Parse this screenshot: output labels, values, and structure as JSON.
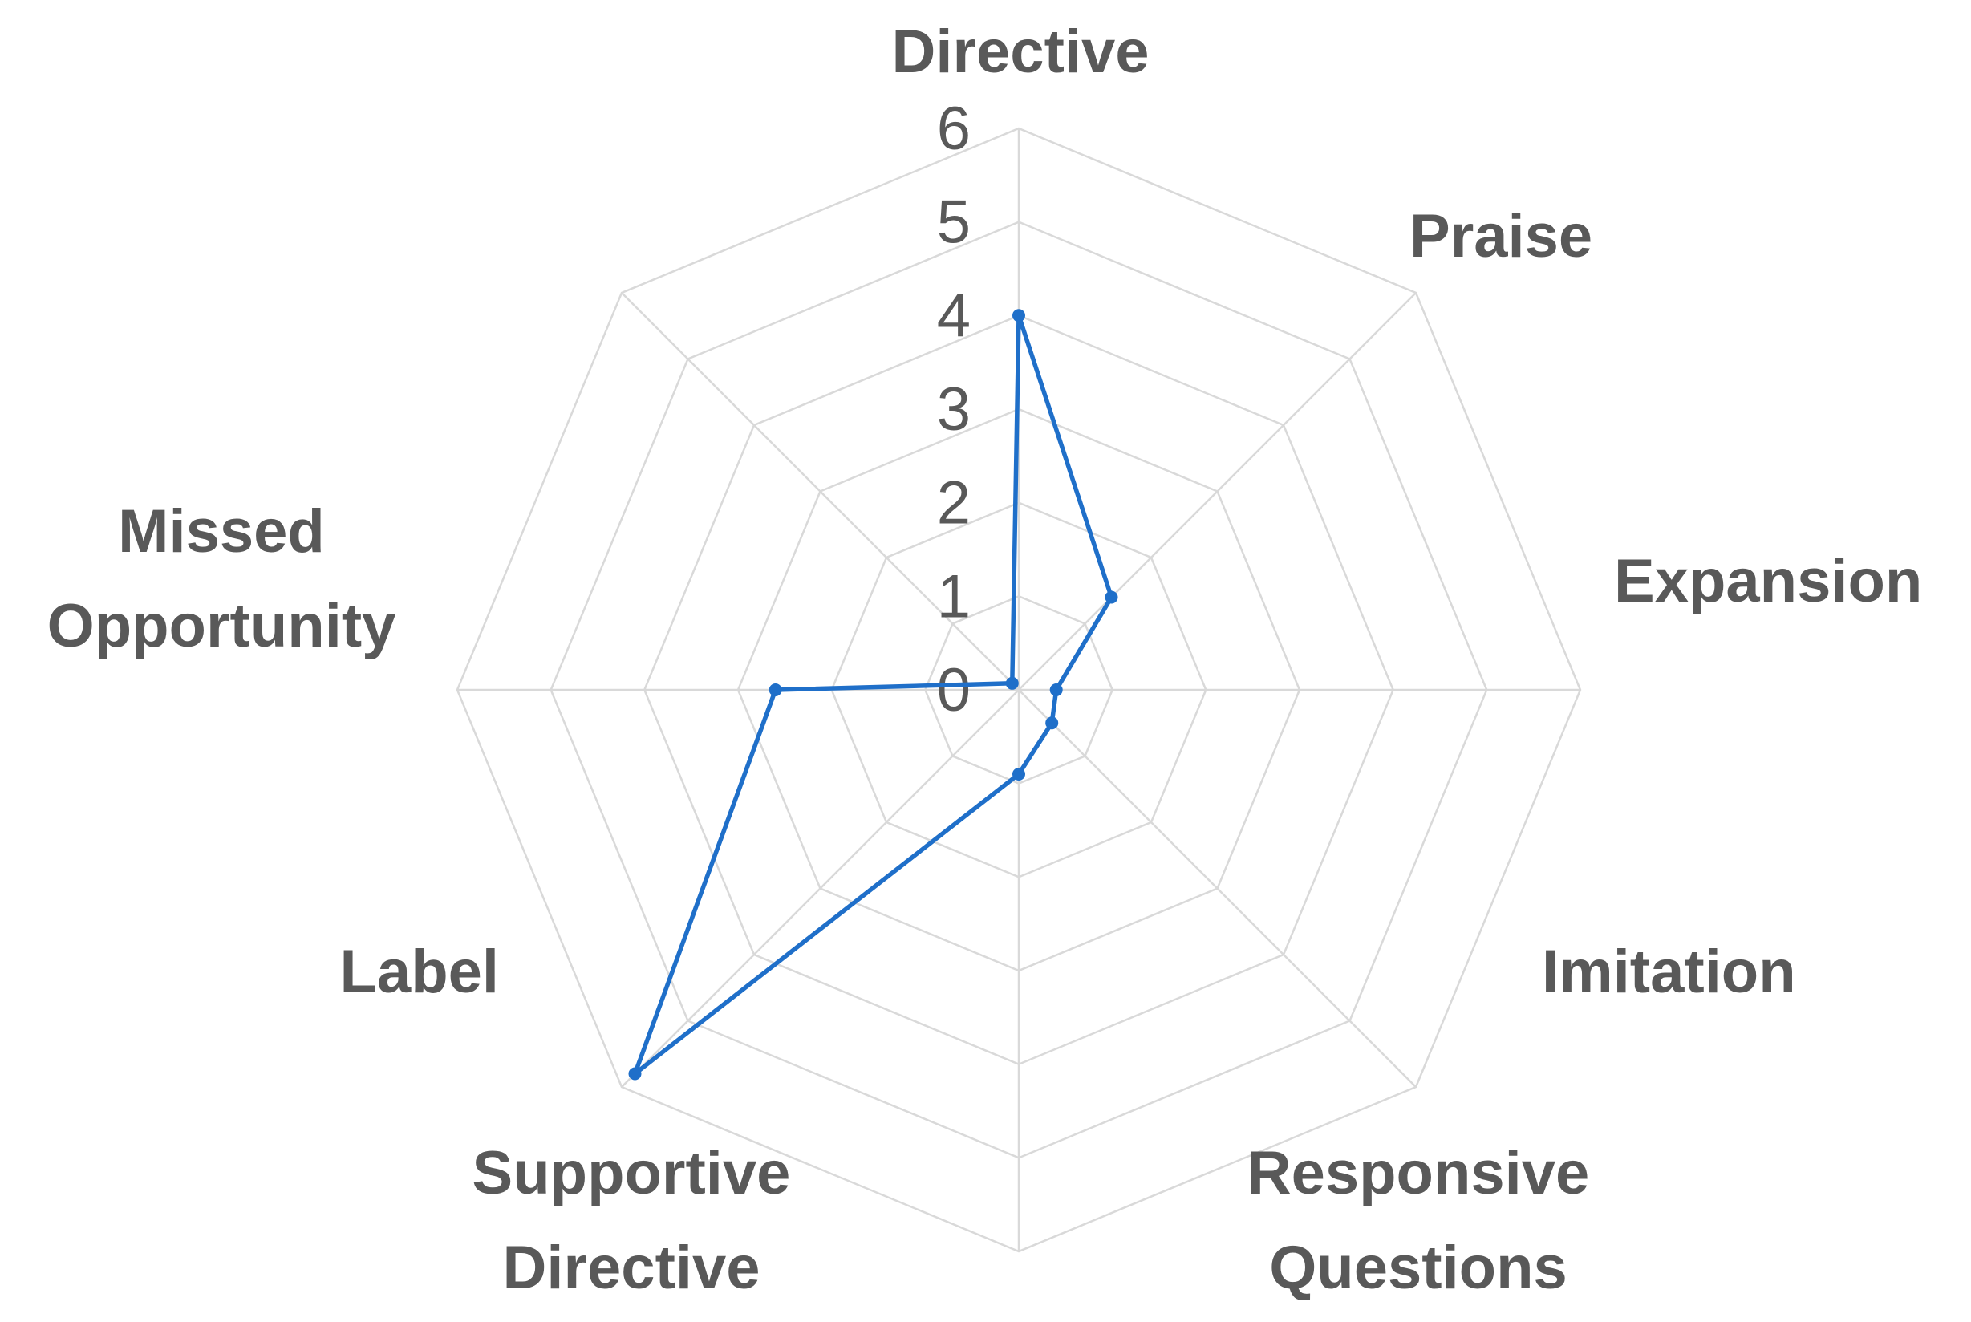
{
  "chart_data": {
    "type": "radar",
    "title": "",
    "categories": [
      "Directive",
      "Praise",
      "Expansion",
      "Imitation",
      "Responsive Questions",
      "Supportive Directive",
      "Label",
      "Missed Opportunity"
    ],
    "category_label_lines": [
      [
        "Directive"
      ],
      [
        "Praise"
      ],
      [
        "Expansion"
      ],
      [
        "Imitation"
      ],
      [
        "Responsive",
        "Questions"
      ],
      [
        "Supportive",
        "Directive"
      ],
      [
        "Label"
      ],
      [
        "Missed",
        "Opportunity"
      ]
    ],
    "radial_ticks": [
      "0",
      "1",
      "2",
      "3",
      "4",
      "5",
      "6"
    ],
    "rlim": [
      0,
      6
    ],
    "grid": true,
    "legend": "none",
    "series": [
      {
        "values": [
          4,
          1.4,
          0.4,
          0.5,
          0.9,
          5.8,
          2.6,
          0.1
        ],
        "color": "#1f6fc9"
      }
    ],
    "colors": {
      "grid": "#d9d9d9",
      "text": "#595959",
      "series": "#1f6fc9"
    }
  }
}
